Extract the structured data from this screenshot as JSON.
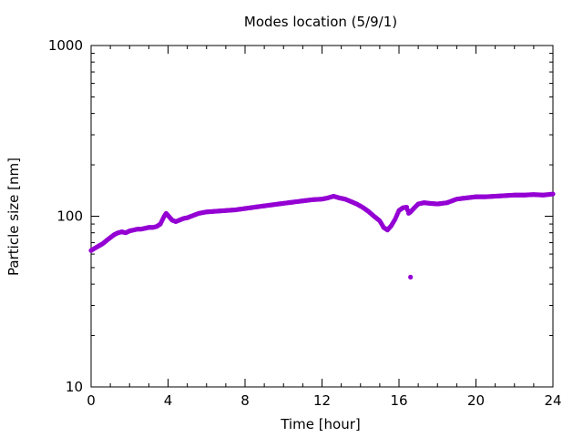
{
  "chart_data": {
    "type": "scatter",
    "title": "Modes location (5/9/1)",
    "xlabel": "Time [hour]",
    "ylabel": "Particle size [nm]",
    "xlim": [
      0,
      24
    ],
    "ylim": [
      10,
      1000
    ],
    "y_scale": "log",
    "x_ticks": [
      0,
      4,
      8,
      12,
      16,
      20,
      24
    ],
    "x_tick_labels": [
      "0",
      "4",
      "8",
      "12",
      "16",
      "20",
      "24"
    ],
    "y_ticks": [
      10,
      100,
      1000
    ],
    "y_tick_labels": [
      "10",
      "100",
      "1000"
    ],
    "grid": false,
    "legend": "none",
    "marker_color": "#9400d3",
    "series": [
      {
        "x": [
          0,
          0.2,
          0.4,
          0.6,
          0.8,
          1.0,
          1.2,
          1.4,
          1.6,
          1.8,
          2.0,
          2.2,
          2.4,
          2.6,
          2.8,
          3.0,
          3.2,
          3.4,
          3.6,
          3.8,
          3.9,
          4.0,
          4.2,
          4.4,
          4.6,
          4.8,
          5.0,
          5.2,
          5.4,
          5.6,
          5.8,
          6.0,
          6.5,
          7.0,
          7.5,
          8.0,
          8.5,
          9.0,
          9.5,
          10.0,
          10.5,
          11.0,
          11.5,
          12.0,
          12.3,
          12.6,
          12.9,
          13.2,
          13.5,
          13.8,
          14.1,
          14.4,
          14.7,
          15.0,
          15.2,
          15.4,
          15.6,
          15.8,
          16.0,
          16.2,
          16.4,
          16.5,
          16.6,
          16.8,
          17.0,
          17.3,
          17.6,
          18.0,
          18.5,
          19.0,
          19.5,
          20.0,
          20.5,
          21.0,
          21.5,
          22.0,
          22.5,
          23.0,
          23.5,
          24.0
        ],
        "y": [
          63,
          65,
          67,
          69,
          72,
          75,
          78,
          80,
          81,
          80,
          82,
          83,
          84,
          84,
          85,
          86,
          86,
          87,
          90,
          100,
          104,
          101,
          95,
          93,
          95,
          97,
          98,
          100,
          102,
          104,
          105,
          106,
          107,
          108,
          109,
          111,
          113,
          115,
          117,
          119,
          121,
          123,
          125,
          126,
          128,
          131,
          128,
          126,
          122,
          118,
          113,
          107,
          100,
          94,
          86,
          83,
          88,
          96,
          108,
          112,
          113,
          104,
          106,
          112,
          118,
          120,
          119,
          118,
          120,
          126,
          128,
          130,
          130,
          131,
          132,
          133,
          133,
          134,
          133,
          135
        ]
      },
      {
        "x": [
          16.6
        ],
        "y": [
          44
        ]
      }
    ]
  }
}
